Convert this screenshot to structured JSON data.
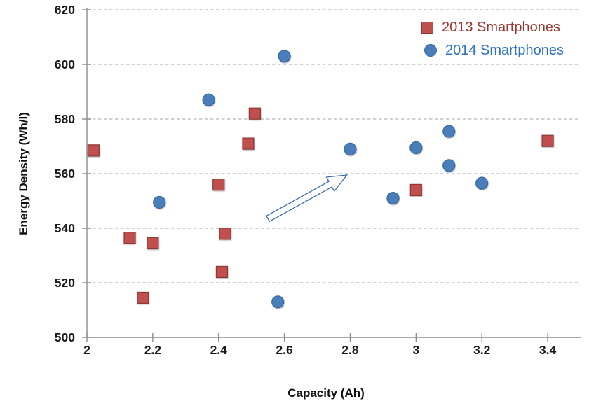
{
  "chart_data": {
    "type": "scatter",
    "title": "",
    "xlabel": "Capacity (Ah)",
    "ylabel": "Energy Density (Wh/l)",
    "xlim": [
      2,
      3.5
    ],
    "ylim": [
      500,
      620
    ],
    "xticks": [
      2,
      2.2,
      2.4,
      2.6,
      2.8,
      3,
      3.2,
      3.4
    ],
    "xtick_labels": [
      "2",
      "2.2",
      "2.4",
      "2.6",
      "2.8",
      "3",
      "3.2",
      "3.4"
    ],
    "yticks": [
      500,
      520,
      540,
      560,
      580,
      600,
      620
    ],
    "ytick_labels": [
      "500",
      "520",
      "540",
      "560",
      "580",
      "600",
      "620"
    ],
    "grid": "horizontal-dashed",
    "legend_position": "top-right",
    "series": [
      {
        "name": "2013 Smartphones",
        "marker": "square",
        "fill": "#C0504D",
        "border": "#8C3836",
        "label_color": "#A0342E",
        "points": [
          [
            2.02,
            568.5
          ],
          [
            2.13,
            536.5
          ],
          [
            2.17,
            514.5
          ],
          [
            2.2,
            534.5
          ],
          [
            2.4,
            556
          ],
          [
            2.41,
            524
          ],
          [
            2.42,
            538
          ],
          [
            2.49,
            571
          ],
          [
            2.51,
            582
          ],
          [
            3.0,
            554
          ],
          [
            3.4,
            572
          ]
        ]
      },
      {
        "name": "2014 Smartphones",
        "marker": "circle",
        "fill": "#4A7EBB",
        "border": "#38679E",
        "label_color": "#2B72C4",
        "points": [
          [
            2.22,
            549.5
          ],
          [
            2.37,
            587
          ],
          [
            2.58,
            513
          ],
          [
            2.6,
            603
          ],
          [
            2.8,
            569
          ],
          [
            2.93,
            551
          ],
          [
            3.0,
            569.5
          ],
          [
            3.1,
            563
          ],
          [
            3.1,
            575.5
          ],
          [
            3.2,
            556.5
          ]
        ]
      }
    ],
    "annotation_arrow": {
      "from": [
        2.55,
        543.5
      ],
      "to": [
        2.79,
        559.5
      ],
      "color": "#3E6BAD"
    }
  },
  "colors": {
    "background": "#FFFFFF",
    "gridline": "#C4C4C4",
    "axis": "#8C8C8C",
    "tick_label": "#1A1A1A",
    "arrow_fill": "#FFFFFF"
  }
}
